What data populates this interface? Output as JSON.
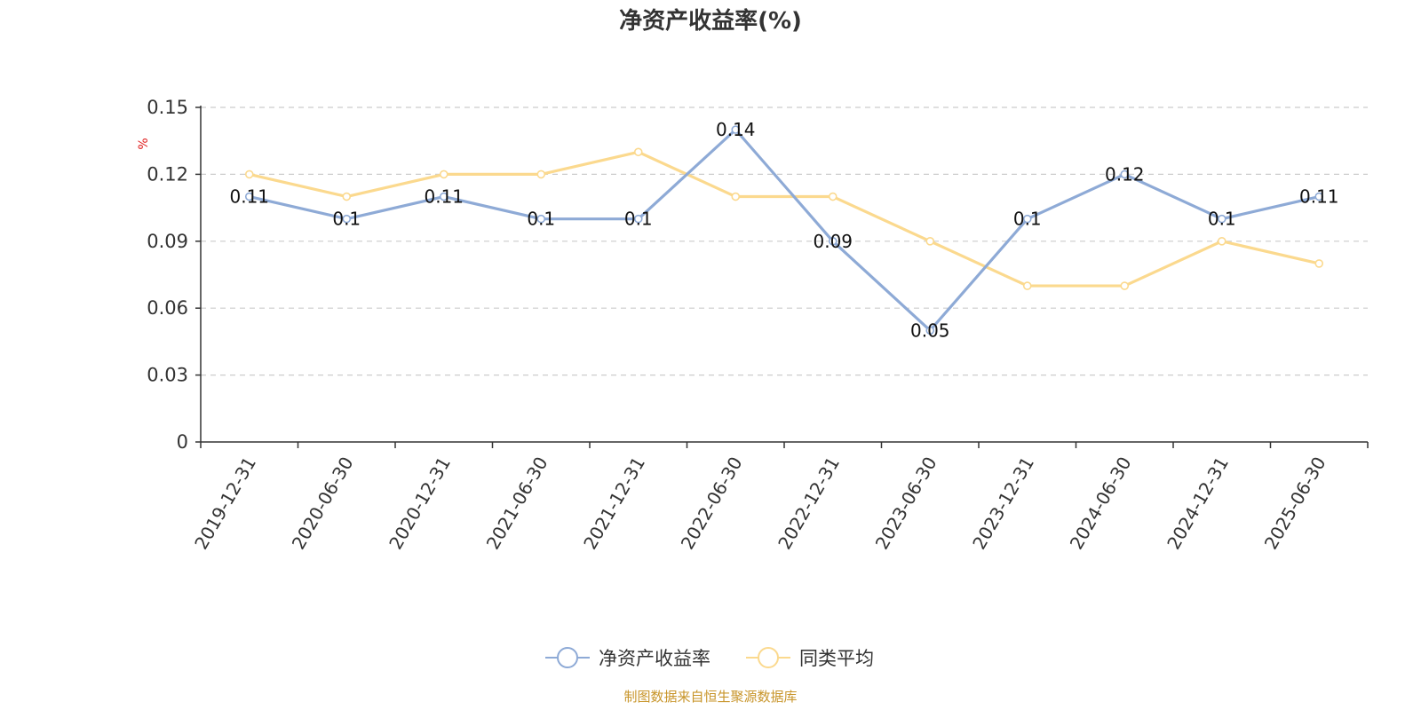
{
  "chart_data": {
    "type": "line",
    "title": "净资产收益率(%)",
    "ylabel": "%",
    "xlabel": "",
    "ylim": [
      0,
      0.15
    ],
    "yticks": [
      "0",
      "0.03",
      "0.06",
      "0.09",
      "0.12",
      "0.15"
    ],
    "grid": true,
    "legend_position": "bottom-center",
    "categories": [
      "2019-12-31",
      "2020-06-30",
      "2020-12-31",
      "2021-06-30",
      "2021-12-31",
      "2022-06-30",
      "2022-12-31",
      "2023-06-30",
      "2023-12-31",
      "2024-06-30",
      "2024-12-31",
      "2025-06-30"
    ],
    "series": [
      {
        "name": "净资产收益率",
        "color": "#8eaad6",
        "values": [
          0.11,
          0.1,
          0.11,
          0.1,
          0.1,
          0.14,
          0.09,
          0.05,
          0.1,
          0.12,
          0.1,
          0.11
        ],
        "labels": [
          "0.11",
          "0.1",
          "0.11",
          "0.1",
          "0.1",
          "0.14",
          "0.09",
          "0.05",
          "0.1",
          "0.12",
          "0.1",
          "0.11"
        ]
      },
      {
        "name": "同类平均",
        "color": "#fbd98e",
        "values": [
          0.12,
          0.11,
          0.12,
          0.12,
          0.13,
          0.11,
          0.11,
          0.09,
          0.07,
          0.07,
          0.09,
          0.08
        ]
      }
    ],
    "source": "制图数据来自恒生聚源数据库"
  }
}
